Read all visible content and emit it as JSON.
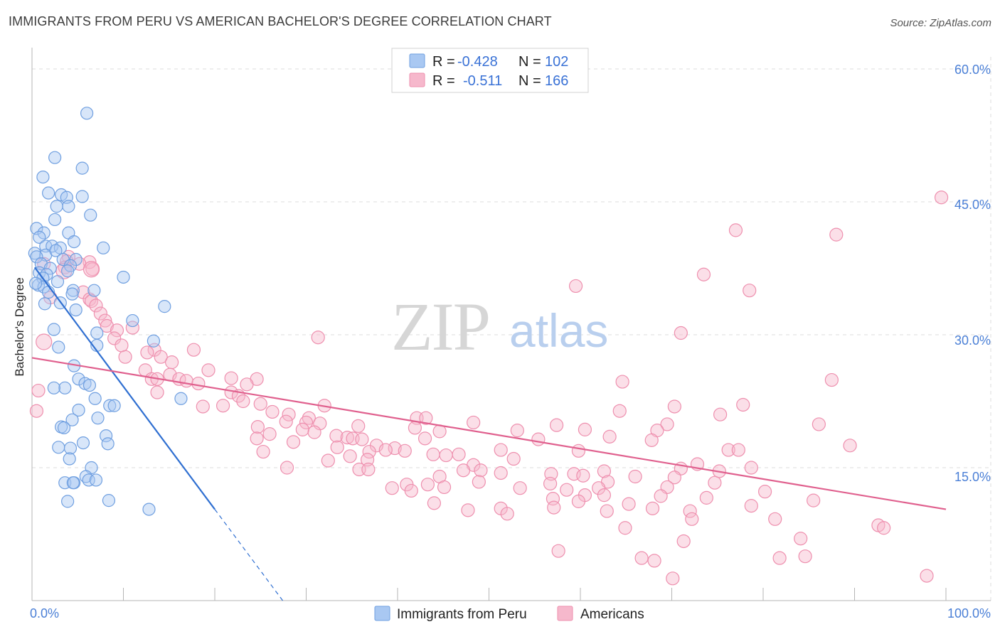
{
  "title": "IMMIGRANTS FROM PERU VS AMERICAN BACHELOR'S DEGREE CORRELATION CHART",
  "source": "Source: ZipAtlas.com",
  "colors": {
    "blue_fill": "#a9c8f2",
    "blue_stroke": "#6f9fe0",
    "blue_line": "#2f6fd1",
    "pink_fill": "#f6b8cc",
    "pink_stroke": "#ee8fae",
    "pink_line": "#e0608e",
    "axis_label": "#4a7fd6",
    "grid": "#dcdcdc"
  },
  "watermark": {
    "zip": "ZIP",
    "atlas": "atlas"
  },
  "legend": {
    "rows": [
      {
        "r_label": "R =",
        "r_value": "-0.428",
        "n_label": "N =",
        "n_value": "102"
      },
      {
        "r_label": "R =",
        "r_value": "-0.511",
        "n_label": "N =",
        "n_value": "166"
      }
    ]
  },
  "bottom_legend": {
    "series1": "Immigrants from Peru",
    "series2": "Americans"
  },
  "chart_data": {
    "type": "scatter",
    "title": "IMMIGRANTS FROM PERU VS AMERICAN BACHELOR'S DEGREE CORRELATION CHART",
    "xlabel": "",
    "ylabel": "Bachelor's Degree",
    "xlim": [
      0,
      100
    ],
    "ylim": [
      0,
      60
    ],
    "x_ticks": [
      0,
      10,
      20,
      30,
      40,
      50,
      60,
      70,
      80,
      90,
      100
    ],
    "x_tick_labels": {
      "0": "0.0%",
      "100": "100.0%"
    },
    "y_ticks": [
      15,
      30,
      45,
      60
    ],
    "y_tick_labels": [
      "15.0%",
      "30.0%",
      "45.0%",
      "60.0%"
    ],
    "grid": true,
    "series": [
      {
        "name": "Immigrants from Peru",
        "r": -0.428,
        "n": 102,
        "trend": {
          "x0": 0.3,
          "y0": 37.6,
          "x1": 20,
          "y1": 10.3,
          "dash_to_x": 27.5
        },
        "points": [
          [
            6,
            55
          ],
          [
            2.5,
            50
          ],
          [
            5.5,
            48.8
          ],
          [
            1.2,
            47.8
          ],
          [
            1.8,
            46
          ],
          [
            3.2,
            45.8
          ],
          [
            5.5,
            45.6
          ],
          [
            3.8,
            45.5
          ],
          [
            2.7,
            44.5
          ],
          [
            4,
            44.5
          ],
          [
            6.4,
            43.5
          ],
          [
            2.5,
            43
          ],
          [
            0.5,
            42
          ],
          [
            1.3,
            41.5
          ],
          [
            4,
            41.5
          ],
          [
            0.8,
            41
          ],
          [
            4.6,
            40.5
          ],
          [
            1.5,
            40
          ],
          [
            2.2,
            40
          ],
          [
            3.1,
            39.8
          ],
          [
            7.8,
            39.8
          ],
          [
            0.3,
            39.2
          ],
          [
            1.5,
            39
          ],
          [
            2.6,
            39.5
          ],
          [
            0.5,
            38.8
          ],
          [
            3.4,
            38.5
          ],
          [
            4.8,
            38.5
          ],
          [
            1,
            38
          ],
          [
            2,
            37.5
          ],
          [
            4.2,
            37.8
          ],
          [
            0.8,
            37
          ],
          [
            1.6,
            36.8
          ],
          [
            3.9,
            37.2
          ],
          [
            1.2,
            36.4
          ],
          [
            2.8,
            36
          ],
          [
            0.7,
            35.6
          ],
          [
            1.3,
            35.4
          ],
          [
            10,
            36.5
          ],
          [
            4.5,
            35
          ],
          [
            0.4,
            35.8
          ],
          [
            6.8,
            35
          ],
          [
            1.8,
            34.8
          ],
          [
            4.4,
            34.6
          ],
          [
            1.4,
            33.5
          ],
          [
            3.1,
            33.6
          ],
          [
            14.5,
            33.2
          ],
          [
            4.8,
            32.8
          ],
          [
            11,
            31.6
          ],
          [
            2.4,
            30.6
          ],
          [
            7.1,
            30.2
          ],
          [
            13.3,
            29.3
          ],
          [
            7.1,
            28.8
          ],
          [
            2.9,
            28.6
          ],
          [
            4.6,
            26.5
          ],
          [
            5.1,
            25
          ],
          [
            5.8,
            24.5
          ],
          [
            3.6,
            24
          ],
          [
            6.3,
            24.3
          ],
          [
            2.4,
            24
          ],
          [
            16.3,
            22.8
          ],
          [
            6.9,
            22.8
          ],
          [
            8.5,
            22
          ],
          [
            9,
            22
          ],
          [
            5.1,
            21.5
          ],
          [
            4.4,
            20.4
          ],
          [
            7.2,
            20.6
          ],
          [
            3.2,
            19.6
          ],
          [
            3.5,
            19.5
          ],
          [
            8.1,
            18.6
          ],
          [
            5.6,
            17.8
          ],
          [
            8.3,
            17.7
          ],
          [
            2.9,
            17.3
          ],
          [
            4.2,
            17.2
          ],
          [
            4.1,
            16
          ],
          [
            6.5,
            15
          ],
          [
            5.9,
            14
          ],
          [
            6.2,
            13.6
          ],
          [
            7,
            13.6
          ],
          [
            3.6,
            13.3
          ],
          [
            4.6,
            13.3
          ],
          [
            4.5,
            13.3
          ],
          [
            8.4,
            11.3
          ],
          [
            3.9,
            11.2
          ],
          [
            12.8,
            10.3
          ]
        ]
      },
      {
        "name": "Americans",
        "r": -0.511,
        "n": 166,
        "trend": {
          "x0": 0,
          "y0": 27.4,
          "x1": 100,
          "y1": 10.3
        },
        "points": [
          [
            99.5,
            45.5
          ],
          [
            77,
            41.8
          ],
          [
            88,
            41.3
          ],
          [
            4,
            38.8
          ],
          [
            3.8,
            38.3
          ],
          [
            6.3,
            38.2
          ],
          [
            1.3,
            38
          ],
          [
            5.2,
            38
          ],
          [
            3.6,
            37.6
          ],
          [
            6.6,
            37.4
          ],
          [
            73.5,
            36.8
          ],
          [
            59.5,
            35.5
          ],
          [
            78.5,
            35
          ],
          [
            5.6,
            34.8
          ],
          [
            2,
            34.2
          ],
          [
            6.3,
            34
          ],
          [
            6.5,
            33.8
          ],
          [
            7,
            33.3
          ],
          [
            7.5,
            32.4
          ],
          [
            8,
            31.6
          ],
          [
            8.2,
            31
          ],
          [
            9.3,
            30.5
          ],
          [
            11,
            30.8
          ],
          [
            31.3,
            29.7
          ],
          [
            71,
            30.2
          ],
          [
            9,
            29.6
          ],
          [
            9.8,
            28.8
          ],
          [
            13.4,
            28.3
          ],
          [
            12.6,
            28
          ],
          [
            17.7,
            28.3
          ],
          [
            10.2,
            27.5
          ],
          [
            14.1,
            27.5
          ],
          [
            15.3,
            26.9
          ],
          [
            19.3,
            26
          ],
          [
            12.4,
            26
          ],
          [
            15.1,
            25.5
          ],
          [
            13.1,
            25
          ],
          [
            16.1,
            25
          ],
          [
            13.7,
            25
          ],
          [
            21.8,
            25.1
          ],
          [
            24.6,
            25
          ],
          [
            64.6,
            24.7
          ],
          [
            87.5,
            24.9
          ],
          [
            16.9,
            24.8
          ],
          [
            18.2,
            24.5
          ],
          [
            23.5,
            24.4
          ],
          [
            13.7,
            23.5
          ],
          [
            21.8,
            23.5
          ],
          [
            22.6,
            23.1
          ],
          [
            0.7,
            23.7
          ],
          [
            23.1,
            22.5
          ],
          [
            18.7,
            21.9
          ],
          [
            25,
            22.2
          ],
          [
            20.9,
            22
          ],
          [
            32,
            22
          ],
          [
            70.3,
            21.9
          ],
          [
            77.8,
            22.1
          ],
          [
            0.5,
            21.4
          ],
          [
            26.3,
            21.3
          ],
          [
            28.1,
            21
          ],
          [
            64.3,
            21.4
          ],
          [
            75.3,
            21
          ],
          [
            30.3,
            20.6
          ],
          [
            27.8,
            20.2
          ],
          [
            30,
            20.1
          ],
          [
            31.5,
            20
          ],
          [
            42.1,
            20.6
          ],
          [
            43.1,
            20.6
          ],
          [
            48.3,
            20.1
          ],
          [
            57.4,
            19.8
          ],
          [
            69.5,
            19.9
          ],
          [
            86.1,
            19.9
          ],
          [
            24.7,
            19.6
          ],
          [
            35.7,
            19.7
          ],
          [
            41.9,
            19.5
          ],
          [
            29.6,
            19.3
          ],
          [
            26,
            18.8
          ],
          [
            30.9,
            19
          ],
          [
            33.3,
            18.6
          ],
          [
            34.5,
            18.4
          ],
          [
            35.1,
            18.3
          ],
          [
            44.6,
            19.1
          ],
          [
            53.1,
            19.2
          ],
          [
            60.5,
            19.3
          ],
          [
            68.4,
            19.2
          ],
          [
            24.6,
            18.3
          ],
          [
            36.1,
            18.2
          ],
          [
            43,
            18.3
          ],
          [
            55.4,
            18.2
          ],
          [
            63.2,
            18.5
          ],
          [
            67.8,
            18.1
          ],
          [
            28.6,
            17.9
          ],
          [
            37.7,
            17.5
          ],
          [
            39.7,
            17.2
          ],
          [
            38.7,
            17
          ],
          [
            33.4,
            17.3
          ],
          [
            25.3,
            16.8
          ],
          [
            40.8,
            16.9
          ],
          [
            51.3,
            17
          ],
          [
            59.8,
            16.9
          ],
          [
            76.2,
            17
          ],
          [
            77.3,
            17
          ],
          [
            89.5,
            17.5
          ],
          [
            36.9,
            16.8
          ],
          [
            34.8,
            16.3
          ],
          [
            43.9,
            16.5
          ],
          [
            45.3,
            16.4
          ],
          [
            46.7,
            16.5
          ],
          [
            52.7,
            16
          ],
          [
            36.7,
            15.9
          ],
          [
            72.8,
            15.4
          ],
          [
            32.4,
            15.8
          ],
          [
            48.3,
            15.3
          ],
          [
            78.7,
            15
          ],
          [
            27.9,
            15
          ],
          [
            35.8,
            14.8
          ],
          [
            36.8,
            14.8
          ],
          [
            47.2,
            14.7
          ],
          [
            56.8,
            14.3
          ],
          [
            59.3,
            14.3
          ],
          [
            49.1,
            14.7
          ],
          [
            71,
            14.9
          ],
          [
            75.2,
            14.6
          ],
          [
            44.6,
            14
          ],
          [
            51.3,
            14.4
          ],
          [
            60.3,
            14.1
          ],
          [
            62.6,
            14.6
          ],
          [
            66,
            14
          ],
          [
            70.3,
            13.9
          ],
          [
            48.9,
            13.4
          ],
          [
            63,
            13.4
          ],
          [
            56.7,
            13.2
          ],
          [
            41,
            13.1
          ],
          [
            43.3,
            13.1
          ],
          [
            39.4,
            12.7
          ],
          [
            41.5,
            12.4
          ],
          [
            45.1,
            12.8
          ],
          [
            53.4,
            12.7
          ],
          [
            58.5,
            12.5
          ],
          [
            62,
            12.7
          ],
          [
            69.5,
            12.8
          ],
          [
            74.7,
            13.3
          ],
          [
            80.2,
            12.3
          ],
          [
            62.6,
            11.9
          ],
          [
            57,
            11.5
          ],
          [
            68.8,
            11.8
          ],
          [
            60.5,
            11.9
          ],
          [
            73.8,
            11.6
          ],
          [
            85.5,
            11.3
          ],
          [
            44,
            11
          ],
          [
            47.7,
            10.2
          ],
          [
            57.1,
            10.5
          ],
          [
            59.8,
            11.2
          ],
          [
            65.3,
            10.9
          ],
          [
            67.9,
            10.4
          ],
          [
            78.7,
            10.7
          ],
          [
            51.3,
            10.4
          ],
          [
            52,
            9.8
          ],
          [
            62.9,
            10.1
          ],
          [
            72,
            10.1
          ],
          [
            72.2,
            9.2
          ],
          [
            81.3,
            9.2
          ],
          [
            92.6,
            8.5
          ],
          [
            93.2,
            8.2
          ],
          [
            64.9,
            8.2
          ],
          [
            84.1,
            7
          ],
          [
            71.3,
            6.7
          ],
          [
            57.6,
            5.6
          ],
          [
            66.7,
            4.8
          ],
          [
            84.6,
            5
          ],
          [
            68.1,
            4.5
          ],
          [
            81.8,
            4.8
          ],
          [
            97.9,
            2.8
          ],
          [
            70.1,
            2.5
          ]
        ]
      }
    ]
  }
}
